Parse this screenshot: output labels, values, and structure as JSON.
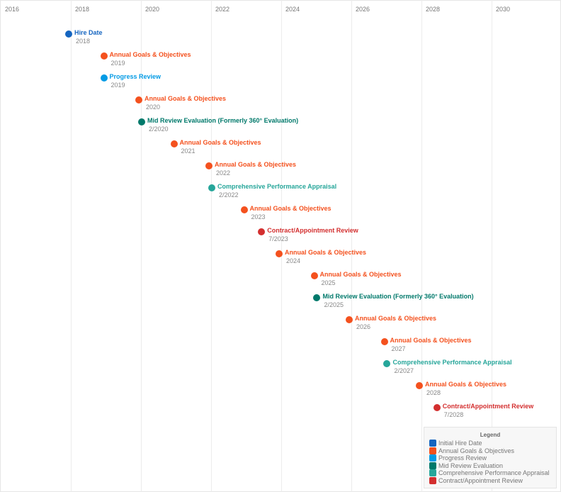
{
  "axis": {
    "years": [
      "2016",
      "2018",
      "2020",
      "2022",
      "2024",
      "2026",
      "2028",
      "2030"
    ],
    "start_year": 2016,
    "end_year": 2032
  },
  "colors": {
    "hire": "#1565c0",
    "annual": "#f4511e",
    "progress": "#039be5",
    "mid": "#00796b",
    "comprehensive": "#26a69a",
    "contract": "#d32f2f"
  },
  "events": [
    {
      "label": "Hire Date",
      "date": "2018",
      "type": "hire",
      "value": 2018.0
    },
    {
      "label": "Annual Goals & Objectives",
      "date": "2019",
      "type": "annual",
      "value": 2019.0
    },
    {
      "label": "Progress Review",
      "date": "2019",
      "type": "progress",
      "value": 2019.0
    },
    {
      "label": "Annual Goals & Objectives",
      "date": "2020",
      "type": "annual",
      "value": 2020.0
    },
    {
      "label": "Mid Review Evaluation (Formerly 360° Evaluation)",
      "date": "2/2020",
      "type": "mid",
      "value": 2020.08
    },
    {
      "label": "Annual Goals & Objectives",
      "date": "2021",
      "type": "annual",
      "value": 2021.0
    },
    {
      "label": "Annual Goals & Objectives",
      "date": "2022",
      "type": "annual",
      "value": 2022.0
    },
    {
      "label": "Comprehensive Performance Appraisal",
      "date": "2/2022",
      "type": "comprehensive",
      "value": 2022.08
    },
    {
      "label": "Annual Goals & Objectives",
      "date": "2023",
      "type": "annual",
      "value": 2023.0
    },
    {
      "label": "Contract/Appointment Review",
      "date": "7/2023",
      "type": "contract",
      "value": 2023.5
    },
    {
      "label": "Annual Goals & Objectives",
      "date": "2024",
      "type": "annual",
      "value": 2024.0
    },
    {
      "label": "Annual Goals & Objectives",
      "date": "2025",
      "type": "annual",
      "value": 2025.0
    },
    {
      "label": "Mid Review Evaluation (Formerly 360° Evaluation)",
      "date": "2/2025",
      "type": "mid",
      "value": 2025.08
    },
    {
      "label": "Annual Goals & Objectives",
      "date": "2026",
      "type": "annual",
      "value": 2026.0
    },
    {
      "label": "Annual Goals & Objectives",
      "date": "2027",
      "type": "annual",
      "value": 2027.0
    },
    {
      "label": "Comprehensive Performance Appraisal",
      "date": "2/2027",
      "type": "comprehensive",
      "value": 2027.08
    },
    {
      "label": "Annual Goals & Objectives",
      "date": "2028",
      "type": "annual",
      "value": 2028.0
    },
    {
      "label": "Contract/Appointment Review",
      "date": "7/2028",
      "type": "contract",
      "value": 2028.5
    }
  ],
  "legend": {
    "title": "Legend",
    "items": [
      {
        "label": "Initial Hire Date",
        "type": "hire"
      },
      {
        "label": "Annual Goals & Objectives",
        "type": "annual"
      },
      {
        "label": "Progress Review",
        "type": "progress"
      },
      {
        "label": "Mid Review Evaluation",
        "type": "mid"
      },
      {
        "label": "Comprehensive Performance Appraisal",
        "type": "comprehensive"
      },
      {
        "label": "Contract/Appointment Review",
        "type": "contract"
      }
    ]
  }
}
